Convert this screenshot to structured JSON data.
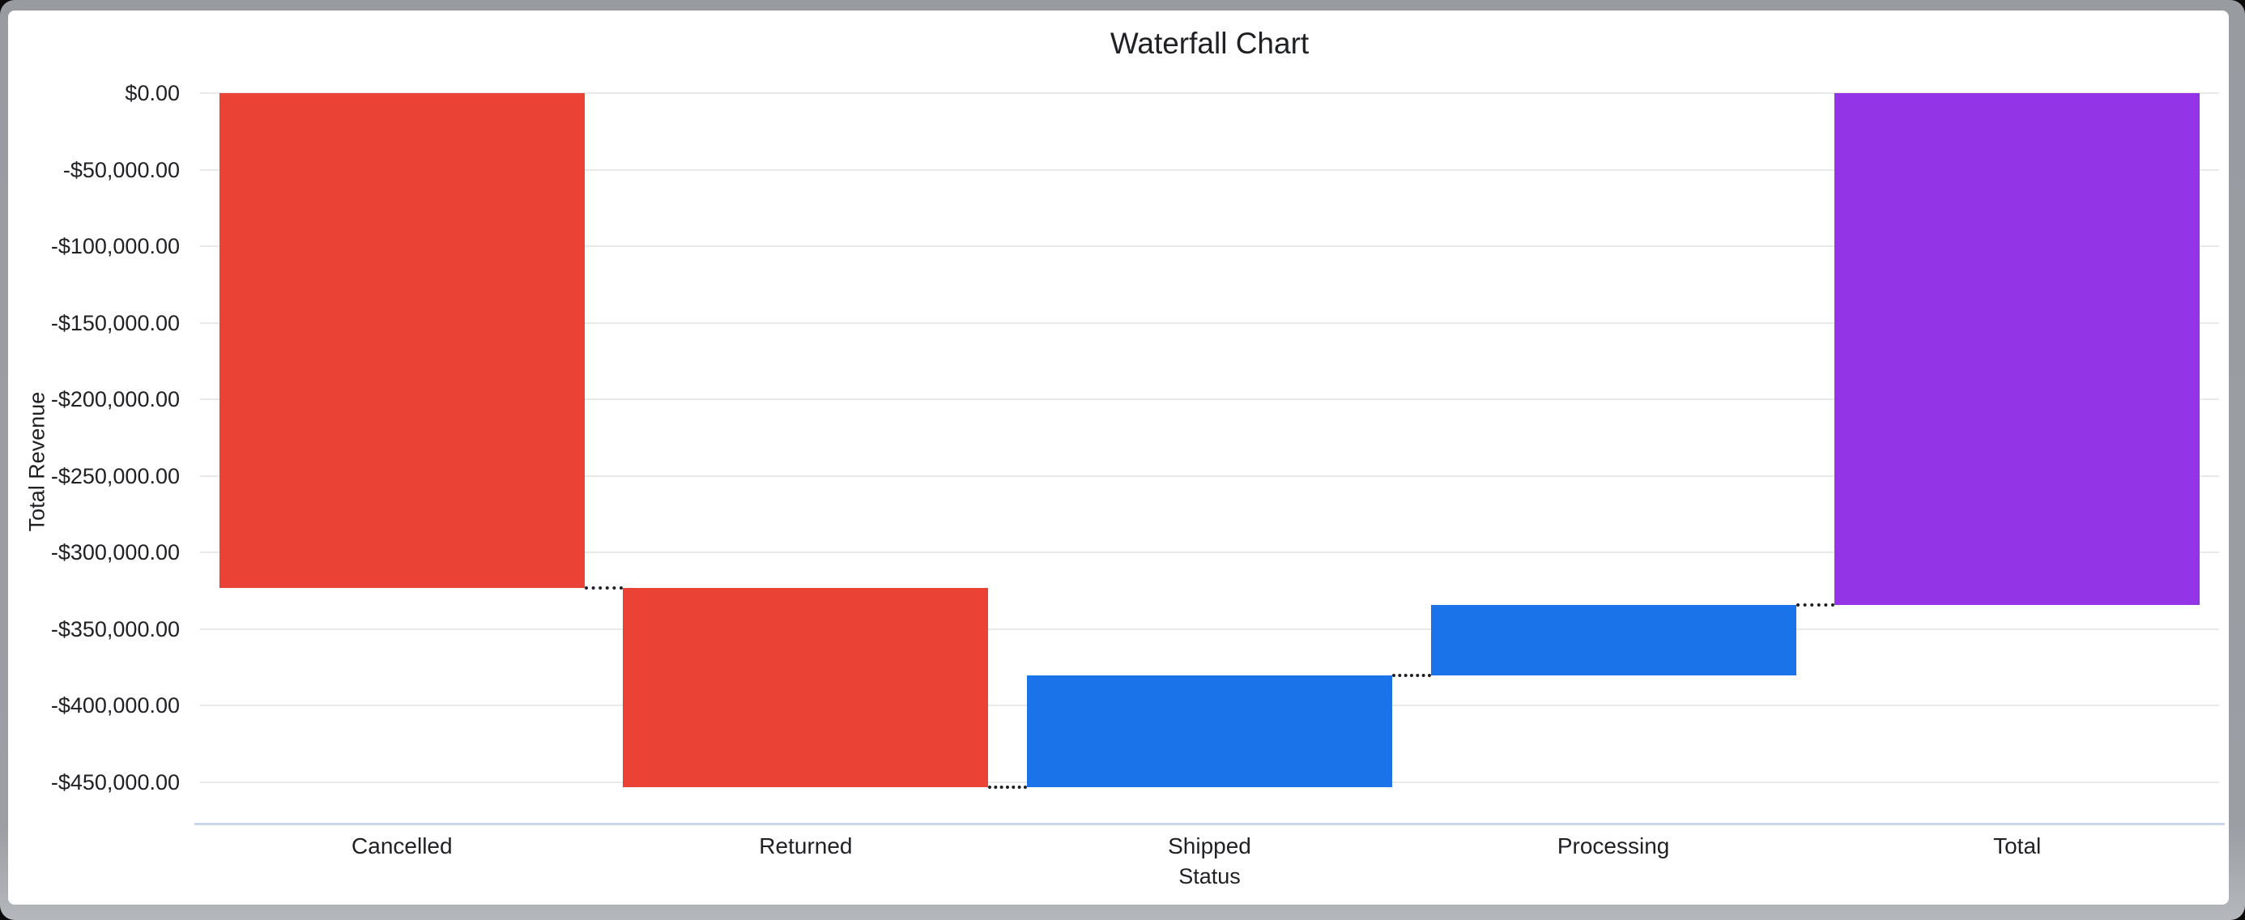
{
  "window": {
    "frame_color": "#9b9fa4",
    "background_color": "#ffffff"
  },
  "chart_data": {
    "type": "waterfall",
    "title": "Waterfall Chart",
    "xlabel": "Status",
    "ylabel": "Total Revenue",
    "categories": [
      "Cancelled",
      "Returned",
      "Shipped",
      "Processing",
      "Total"
    ],
    "series": [
      {
        "name": "Total Revenue",
        "values": [
          -323000,
          -130000,
          73000,
          46000,
          -334000
        ]
      }
    ],
    "bars": [
      {
        "label": "Cancelled",
        "delta": -323000,
        "start": 0,
        "end": -323000,
        "role": "decrease",
        "color": "#EA4335"
      },
      {
        "label": "Returned",
        "delta": -130000,
        "start": -323000,
        "end": -453000,
        "role": "decrease",
        "color": "#EA4335"
      },
      {
        "label": "Shipped",
        "delta": 73000,
        "start": -453000,
        "end": -380000,
        "role": "increase",
        "color": "#1A73E8"
      },
      {
        "label": "Processing",
        "delta": 46000,
        "start": -380000,
        "end": -334000,
        "role": "increase",
        "color": "#9334E6"
      },
      {
        "label": "Total",
        "delta": -334000,
        "start": 0,
        "end": -334000,
        "role": "total",
        "color": "#9334E6"
      }
    ],
    "y_ticks": [
      {
        "value": 0,
        "label": "$0.00"
      },
      {
        "value": -50000,
        "label": "-$50,000.00"
      },
      {
        "value": -100000,
        "label": "-$100,000.00"
      },
      {
        "value": -150000,
        "label": "-$150,000.00"
      },
      {
        "value": -200000,
        "label": "-$200,000.00"
      },
      {
        "value": -250000,
        "label": "-$250,000.00"
      },
      {
        "value": -300000,
        "label": "-$300,000.00"
      },
      {
        "value": -350000,
        "label": "-$350,000.00"
      },
      {
        "value": -400000,
        "label": "-$400,000.00"
      },
      {
        "value": -450000,
        "label": "-$450,000.00"
      }
    ],
    "ylim": [
      -476500,
      0
    ],
    "grid": true,
    "legend": false,
    "connector_style": "dotted",
    "connector_color": "#202124",
    "colors": {
      "decrease": "#EA4335",
      "increase": "#1A73E8",
      "total": "#9334E6",
      "gridline": "#e9e9e9",
      "baseline": "#ccd4e8",
      "text": "#202124"
    }
  }
}
